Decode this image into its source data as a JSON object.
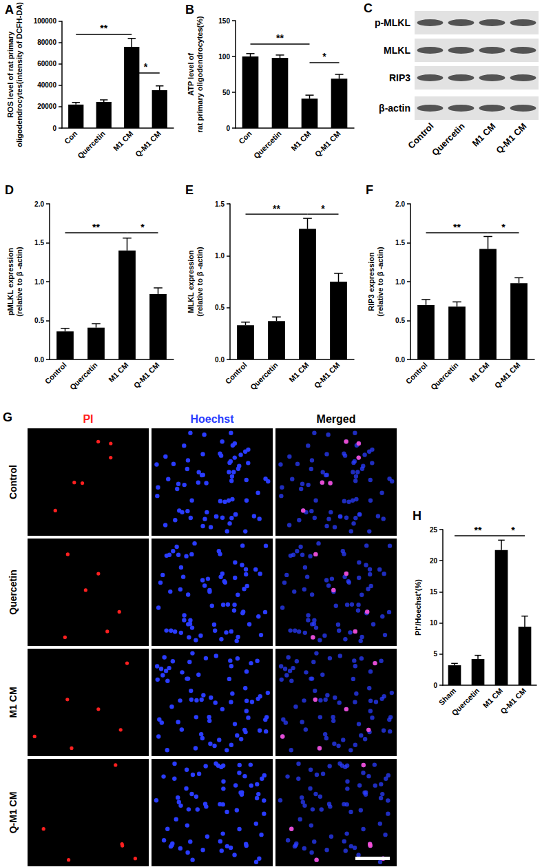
{
  "chart_data": [
    {
      "panel": "A",
      "type": "bar",
      "categories": [
        "Con",
        "Quercetin",
        "M1 CM",
        "Q-M1 CM"
      ],
      "values": [
        22000,
        24500,
        76000,
        35500
      ],
      "errors": [
        2000,
        2000,
        8000,
        4000
      ],
      "color": "#000000",
      "ylabel": "ROS level of rat primary\noligodendrocytes(intensity of DCFH-DA)",
      "ylim": [
        0,
        100000
      ],
      "yticks": [
        0,
        20000,
        40000,
        60000,
        80000,
        100000
      ],
      "annotations": [
        {
          "text": "**",
          "from": "Con",
          "to": "M1 CM",
          "y": 88000
        },
        {
          "text": "*",
          "from": "M1 CM",
          "to": "Q-M1 CM",
          "y": 52000
        }
      ]
    },
    {
      "panel": "B",
      "type": "bar",
      "categories": [
        "Con",
        "Quercetin",
        "M1 CM",
        "Q-M1 CM"
      ],
      "values": [
        100,
        98,
        41,
        69
      ],
      "errors": [
        4,
        4,
        5,
        6
      ],
      "color": "#000000",
      "ylabel": "ATP level of\nrat primary oligodendrocytes(%)",
      "ylim": [
        0,
        150
      ],
      "yticks": [
        0,
        50,
        100,
        150
      ],
      "annotations": [
        {
          "text": "**",
          "from": "Con",
          "to": "M1 CM",
          "y": 118
        },
        {
          "text": "*",
          "from": "M1 CM",
          "to": "Q-M1 CM",
          "y": 92
        }
      ]
    },
    {
      "panel": "D",
      "type": "bar",
      "categories": [
        "Control",
        "Quercetin",
        "M1 CM",
        "Q-M1 CM"
      ],
      "values": [
        0.36,
        0.41,
        1.4,
        0.84
      ],
      "errors": [
        0.04,
        0.05,
        0.16,
        0.08
      ],
      "color": "#000000",
      "ylabel": "pMLKL expression\n(relative to β -actin)",
      "ylim": [
        0,
        2.0
      ],
      "yticks": [
        {
          "value": 0,
          "label": "0.0"
        },
        {
          "value": 0.5,
          "label": "0.5"
        },
        {
          "value": 1,
          "label": "1.0"
        },
        {
          "value": 1.5,
          "label": "1.5"
        },
        {
          "value": 2,
          "label": "2.0"
        }
      ],
      "annotations": [
        {
          "text": "**",
          "from": "Control",
          "to": "M1 CM",
          "y": 1.63
        },
        {
          "text": "*",
          "from": "M1 CM",
          "to": "Q-M1 CM",
          "y": 1.63
        }
      ]
    },
    {
      "panel": "E",
      "type": "bar",
      "categories": [
        "Control",
        "Quercetin",
        "M1 CM",
        "Q-M1 CM"
      ],
      "values": [
        0.33,
        0.37,
        1.26,
        0.75
      ],
      "errors": [
        0.03,
        0.04,
        0.1,
        0.08
      ],
      "color": "#000000",
      "ylabel": "MLKL expression\n(relative to β -actin)",
      "ylim": [
        0,
        1.5
      ],
      "yticks": [
        {
          "value": 0,
          "label": "0.0"
        },
        {
          "value": 0.5,
          "label": "0.5"
        },
        {
          "value": 1,
          "label": "1.0"
        },
        {
          "value": 1.5,
          "label": "1.5"
        }
      ],
      "annotations": [
        {
          "text": "**",
          "from": "Control",
          "to": "M1 CM",
          "y": 1.4
        },
        {
          "text": "*",
          "from": "M1 CM",
          "to": "Q-M1 CM",
          "y": 1.4
        }
      ]
    },
    {
      "panel": "F",
      "type": "bar",
      "categories": [
        "Control",
        "Quercetin",
        "M1 CM",
        "Q-M1 CM"
      ],
      "values": [
        0.7,
        0.68,
        1.42,
        0.98
      ],
      "errors": [
        0.07,
        0.06,
        0.16,
        0.07
      ],
      "color": "#000000",
      "ylabel": "RIP3 expression\n(relative to β -actin)",
      "ylim": [
        0,
        2.0
      ],
      "yticks": [
        {
          "value": 0,
          "label": "0.0"
        },
        {
          "value": 0.5,
          "label": "0.5"
        },
        {
          "value": 1,
          "label": "1.0"
        },
        {
          "value": 1.5,
          "label": "1.5"
        },
        {
          "value": 2,
          "label": "2.0"
        }
      ],
      "annotations": [
        {
          "text": "**",
          "from": "Control",
          "to": "M1 CM",
          "y": 1.63
        },
        {
          "text": "*",
          "from": "M1 CM",
          "to": "Q-M1 CM",
          "y": 1.63
        }
      ]
    },
    {
      "panel": "H",
      "type": "bar",
      "categories": [
        "Sham",
        "Quercetin",
        "M1 CM",
        "Q-M1 CM"
      ],
      "values": [
        3.2,
        4.2,
        21.7,
        9.4
      ],
      "errors": [
        0.3,
        0.6,
        1.6,
        1.7
      ],
      "color": "#000000",
      "ylabel": "PI⁺/Hoechst⁺(%)",
      "ylim": [
        0,
        25
      ],
      "yticks": [
        0,
        5,
        10,
        15,
        20,
        25
      ],
      "annotations": [
        {
          "text": "**",
          "from": "Sham",
          "to": "M1 CM",
          "y": 24
        },
        {
          "text": "*",
          "from": "M1 CM",
          "to": "Q-M1 CM",
          "y": 24
        }
      ]
    }
  ],
  "blot": {
    "panel": "C",
    "rows": [
      "p-MLKL",
      "MLKL",
      "RIP3",
      "β-actin"
    ],
    "lanes": [
      "Control",
      "Quercetin",
      "M1 CM",
      "Q-M1 CM"
    ]
  },
  "micrographs": {
    "panel": "G",
    "channels": [
      {
        "name": "PI",
        "color": "#ff2020"
      },
      {
        "name": "Hoechst",
        "color": "#2a3cff"
      },
      {
        "name": "Merged",
        "color": "#000000"
      }
    ],
    "rows": [
      "Control",
      "Quercetin",
      "M1 CM",
      "Q-M1 CM"
    ]
  }
}
